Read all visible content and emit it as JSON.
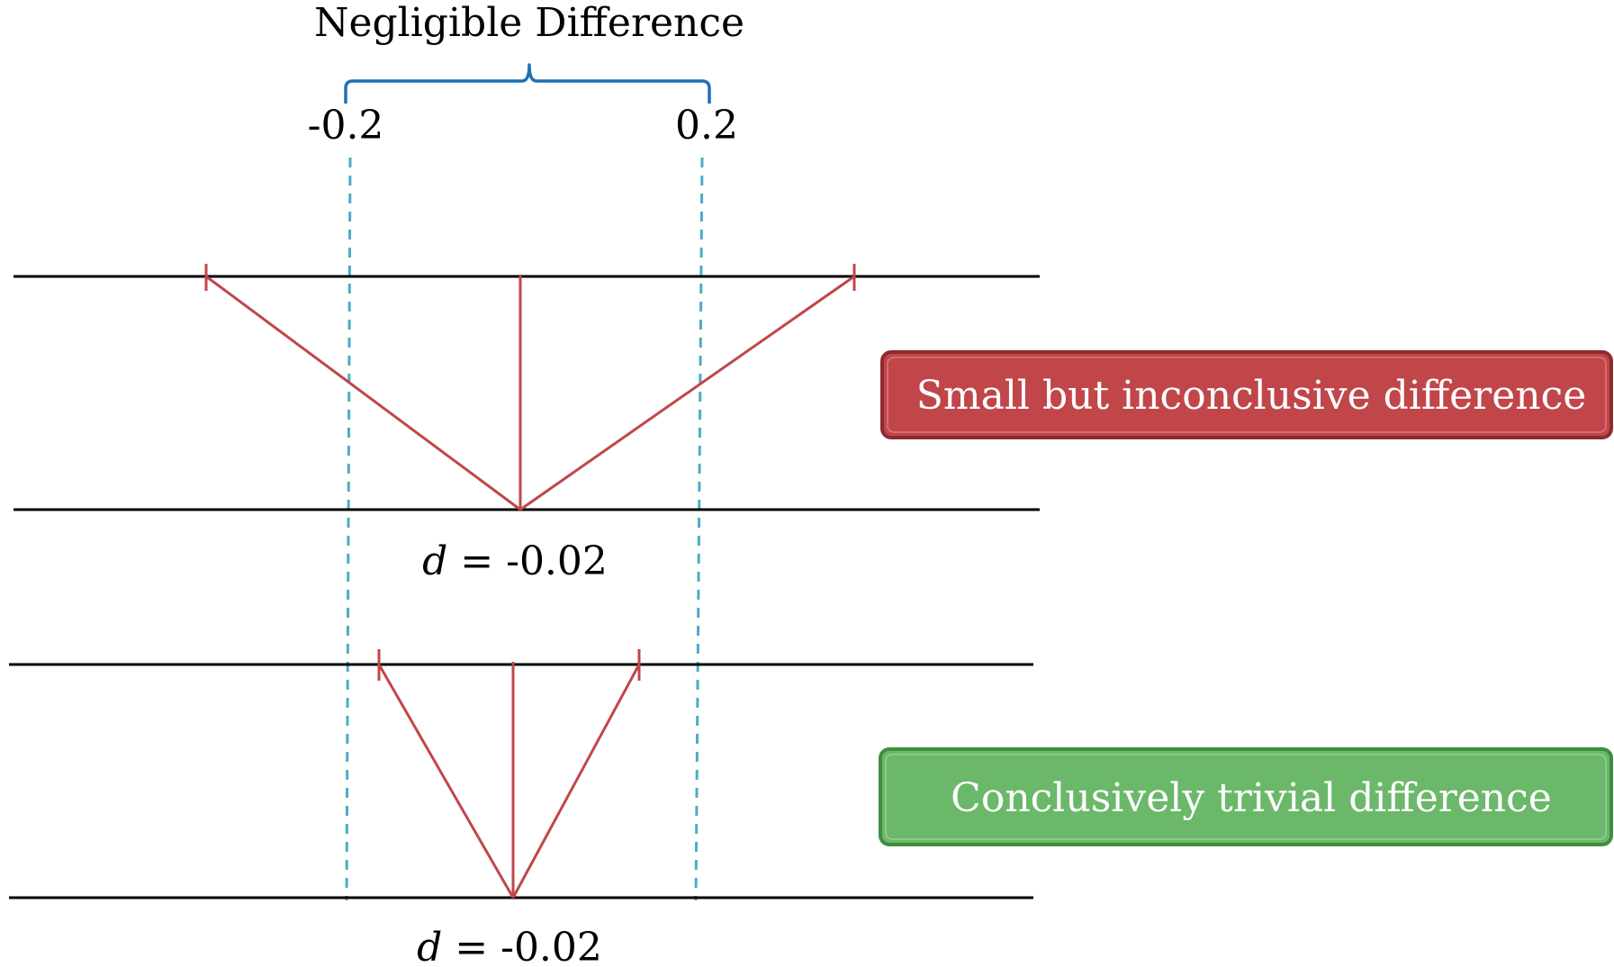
{
  "bracket": {
    "title": "Negligible Difference",
    "lower_label": "-0.2",
    "upper_label": "0.2",
    "bracket_color": "#1F6FB8",
    "guide_color": "#4BACC6"
  },
  "intervals": [
    {
      "point_symbol": "d",
      "point_value": " = -0.02",
      "badge_label": "Small but inconclusive difference",
      "badge_color": "#C0464A",
      "badge_border": "#8E2B2E"
    },
    {
      "point_symbol": "d",
      "point_value": " = -0.02",
      "badge_label": "Conclusively trivial difference",
      "badge_color": "#6BB86A",
      "badge_border": "#3E8E41"
    }
  ],
  "colors": {
    "interval": "#C0464A",
    "axis": "#000000"
  }
}
